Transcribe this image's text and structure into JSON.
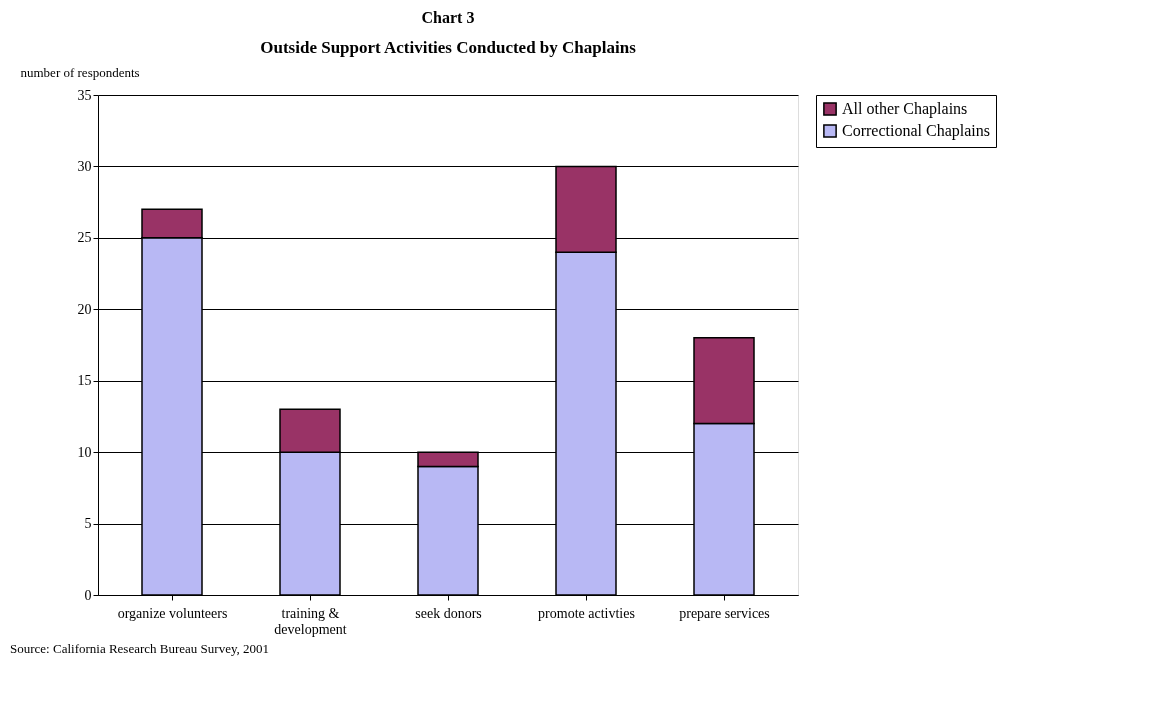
{
  "chart_data": {
    "type": "bar",
    "title": "Chart 3",
    "subtitle": "Outside Support Activities Conducted by Chaplains",
    "ylabel": "number of respondents",
    "categories": [
      "organize volunteers",
      "training & development",
      "seek donors",
      "promote activties",
      "prepare services"
    ],
    "stacked": true,
    "series": [
      {
        "name": "Correctional Chaplains",
        "color": "#b8b8f4",
        "values": [
          25,
          10,
          9,
          24,
          12
        ]
      },
      {
        "name": "All other Chaplains",
        "color": "#993366",
        "values": [
          2,
          3,
          1,
          6,
          6
        ]
      }
    ],
    "ylim": [
      0,
      35
    ],
    "yticks": [
      0,
      5,
      10,
      15,
      20,
      25,
      30,
      35
    ],
    "grid": "y",
    "legend": "right",
    "annotations": [
      "Source: California Research Bureau Survey, 2001"
    ]
  }
}
